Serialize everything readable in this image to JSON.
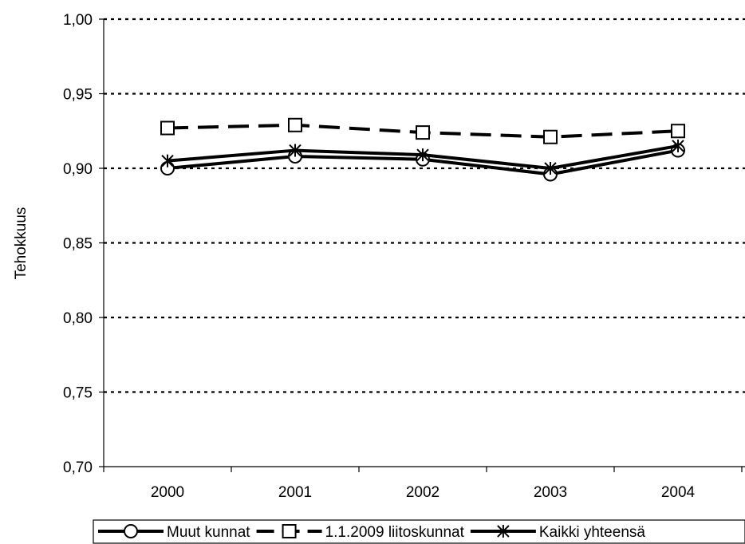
{
  "chart_data": {
    "type": "line",
    "title": "",
    "xlabel": "",
    "ylabel": "Tehokkuus",
    "categories": [
      "2000",
      "2001",
      "2002",
      "2003",
      "2004"
    ],
    "ylim": [
      0.7,
      1.0
    ],
    "yticks": [
      0.7,
      0.75,
      0.8,
      0.85,
      0.9,
      0.95,
      1.0
    ],
    "ytick_labels": [
      "0,70",
      "0,75",
      "0,80",
      "0,85",
      "0,90",
      "0,95",
      "1,00"
    ],
    "grid": "horizontal dotted",
    "legend_position": "bottom",
    "series": [
      {
        "name": "Muut kunnat",
        "marker": "circle",
        "line_style": "solid",
        "values": [
          0.9,
          0.908,
          0.906,
          0.896,
          0.912
        ]
      },
      {
        "name": "1.1.2009 liitoskunnat",
        "marker": "square",
        "line_style": "dashed",
        "values": [
          0.927,
          0.929,
          0.924,
          0.921,
          0.925
        ]
      },
      {
        "name": "Kaikki yhteensä",
        "marker": "asterisk",
        "line_style": "solid",
        "values": [
          0.905,
          0.912,
          0.909,
          0.9,
          0.915
        ]
      }
    ]
  }
}
